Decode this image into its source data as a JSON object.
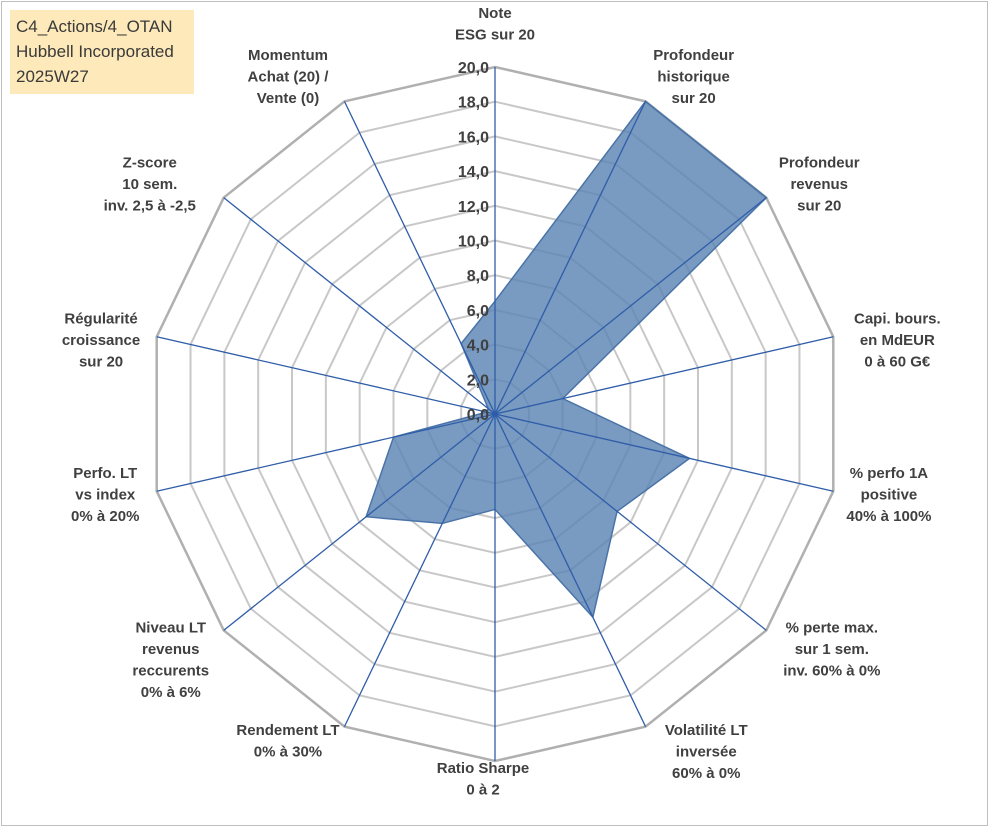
{
  "title_box": {
    "line1": "C4_Actions/4_OTAN",
    "line2": "Hubbell Incorporated",
    "line3": "2025W27"
  },
  "chart_data": {
    "type": "radar",
    "rmin": 0,
    "rmax": 20,
    "tick_step": 2,
    "tick_labels": [
      "0,0",
      "2,0",
      "4,0",
      "6,0",
      "8,0",
      "10,0",
      "12,0",
      "14,0",
      "16,0",
      "18,0",
      "20,0"
    ],
    "grid": true,
    "colors": {
      "fill": "#5b84b3",
      "fill_opacity": 0.82,
      "stroke": "#4a74a8",
      "spokes": "#2f5da8",
      "rings": "#c8c8c8",
      "outer": "#b0b0b0"
    },
    "axes": [
      {
        "lines": [
          "Note",
          "ESG sur 20"
        ],
        "value": 6.5
      },
      {
        "lines": [
          "Profondeur",
          "historique",
          "sur 20"
        ],
        "value": 20.0
      },
      {
        "lines": [
          "Profondeur",
          "revenus",
          "sur 20"
        ],
        "value": 20.0
      },
      {
        "lines": [
          "Capi. bours.",
          "en MdEUR",
          "0 à 60 G€"
        ],
        "value": 4.0
      },
      {
        "lines": [
          "% perfo 1A",
          "positive",
          "40% à 100%"
        ],
        "value": 11.5
      },
      {
        "lines": [
          "% perte max.",
          "sur 1 sem.",
          "inv. 60% à 0%"
        ],
        "value": 9.0
      },
      {
        "lines": [
          "Volatilité LT",
          "inversée",
          "60% à 0%"
        ],
        "value": 13.0
      },
      {
        "lines": [
          "Ratio Sharpe",
          "0 à 2"
        ],
        "value": 5.5
      },
      {
        "lines": [
          "Rendement LT",
          "0% à 30%"
        ],
        "value": 7.0
      },
      {
        "lines": [
          "Niveau LT",
          "revenus",
          "reccurents",
          "0% à 6%"
        ],
        "value": 9.5
      },
      {
        "lines": [
          "Perfo. LT",
          "vs index",
          "0% à 20%"
        ],
        "value": 6.0
      },
      {
        "lines": [
          "Régularité",
          "croissance",
          "sur 20"
        ],
        "value": 0.5
      },
      {
        "lines": [
          "Z-score",
          "10 sem.",
          "inv. 2,5 à -2,5"
        ],
        "value": 0.5
      },
      {
        "lines": [
          "Momentum",
          "Achat (20) /",
          "Vente (0)"
        ],
        "value": 4.5
      }
    ]
  }
}
